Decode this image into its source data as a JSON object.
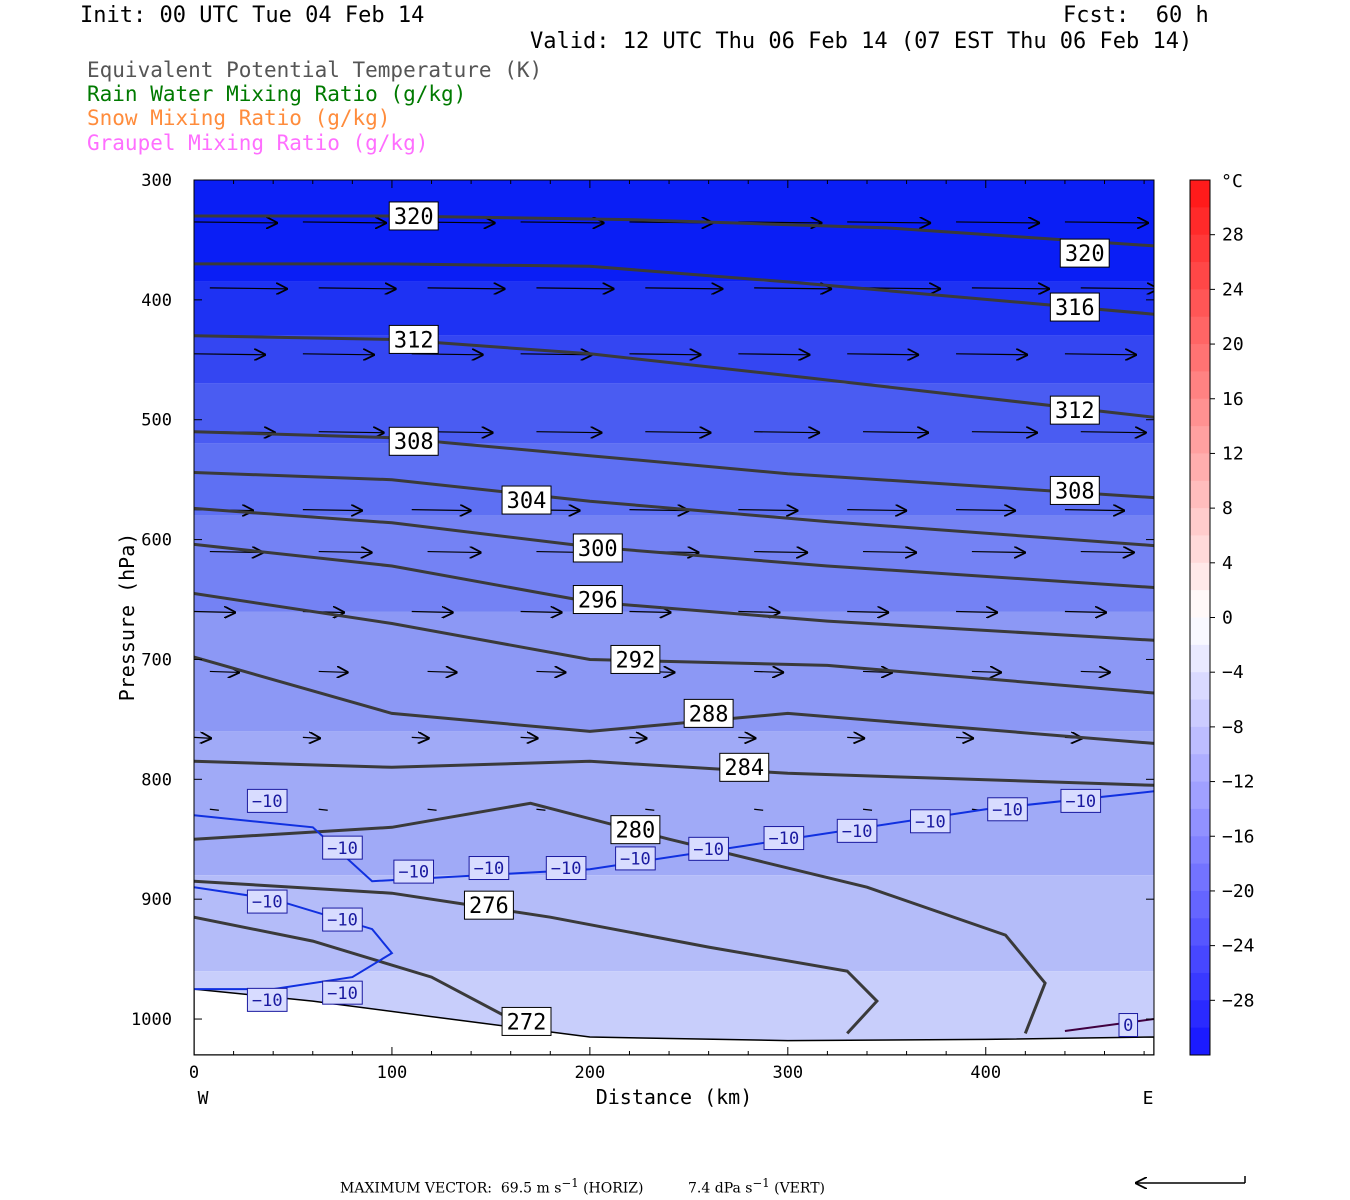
{
  "header": {
    "init": "Init: 00 UTC Tue 04 Feb 14",
    "fcst": "Fcst:  60 h",
    "valid": "Valid: 12 UTC Thu 06 Feb 14 (07 EST Thu 06 Feb 14)"
  },
  "fields": [
    {
      "label": "Equivalent Potential Temperature (K)",
      "color": "#555555"
    },
    {
      "label": "Rain Water Mixing Ratio (g/kg)",
      "color": "#007a00"
    },
    {
      "label": "Snow Mixing Ratio (g/kg)",
      "color": "#ff8c3c"
    },
    {
      "label": "Graupel Mixing Ratio (g/kg)",
      "color": "#ff6eff"
    }
  ],
  "chart_data": {
    "type": "contour",
    "xlabel": "Distance (km)",
    "ylabel": "Pressure (hPa)",
    "xlim": [
      0,
      485
    ],
    "ylim": [
      1030,
      300
    ],
    "x_ticks": [
      0,
      100,
      200,
      300,
      400
    ],
    "y_ticks": [
      300,
      400,
      500,
      600,
      700,
      800,
      900,
      1000
    ],
    "x_end_labels": {
      "left": "W",
      "right": "E"
    },
    "colorbar": {
      "unit": "°C",
      "tick_labels": [
        "28",
        "24",
        "20",
        "16",
        "12",
        "8",
        "4",
        "0",
        "−4",
        "−8",
        "−12",
        "−16",
        "−20",
        "−24",
        "−28"
      ],
      "tick_values": [
        28,
        24,
        20,
        16,
        12,
        8,
        4,
        0,
        -4,
        -8,
        -12,
        -16,
        -20,
        -24,
        -28
      ],
      "range": [
        -32,
        32
      ]
    },
    "theta_e_contours": [
      {
        "label": "320",
        "points": [
          [
            0,
            330
          ],
          [
            100,
            330
          ],
          [
            220,
            333
          ],
          [
            350,
            340
          ],
          [
            485,
            355
          ]
        ],
        "label_pos": [
          [
            111,
            330
          ],
          [
            450,
            361
          ]
        ]
      },
      {
        "label": "316",
        "points": [
          [
            0,
            370
          ],
          [
            100,
            370
          ],
          [
            200,
            372
          ],
          [
            300,
            385
          ],
          [
            485,
            412
          ]
        ],
        "label_pos": [
          [
            445,
            406
          ]
        ]
      },
      {
        "label": "312",
        "points": [
          [
            0,
            430
          ],
          [
            100,
            433
          ],
          [
            200,
            445
          ],
          [
            310,
            465
          ],
          [
            485,
            498
          ]
        ],
        "label_pos": [
          [
            111,
            433
          ],
          [
            445,
            492
          ]
        ]
      },
      {
        "label": "308",
        "points": [
          [
            0,
            510
          ],
          [
            100,
            515
          ],
          [
            200,
            530
          ],
          [
            300,
            545
          ],
          [
            485,
            565
          ]
        ],
        "label_pos": [
          [
            111,
            518
          ],
          [
            445,
            559
          ]
        ]
      },
      {
        "label": "304",
        "points": [
          [
            0,
            544
          ],
          [
            100,
            550
          ],
          [
            200,
            568
          ],
          [
            320,
            585
          ],
          [
            485,
            605
          ]
        ],
        "label_pos": [
          [
            168,
            567
          ]
        ]
      },
      {
        "label": "300",
        "points": [
          [
            0,
            574
          ],
          [
            100,
            586
          ],
          [
            200,
            606
          ],
          [
            320,
            622
          ],
          [
            485,
            640
          ]
        ],
        "label_pos": [
          [
            204,
            607
          ]
        ]
      },
      {
        "label": "296",
        "points": [
          [
            0,
            604
          ],
          [
            100,
            622
          ],
          [
            200,
            652
          ],
          [
            320,
            668
          ],
          [
            485,
            684
          ]
        ],
        "label_pos": [
          [
            204,
            650
          ]
        ]
      },
      {
        "label": "292",
        "points": [
          [
            0,
            645
          ],
          [
            100,
            670
          ],
          [
            200,
            700
          ],
          [
            320,
            705
          ],
          [
            485,
            728
          ]
        ],
        "label_pos": [
          [
            223,
            700
          ]
        ]
      },
      {
        "label": "288",
        "points": [
          [
            0,
            698
          ],
          [
            100,
            745
          ],
          [
            200,
            760
          ],
          [
            300,
            745
          ],
          [
            485,
            770
          ]
        ],
        "label_pos": [
          [
            260,
            745
          ]
        ]
      },
      {
        "label": "284",
        "points": [
          [
            0,
            785
          ],
          [
            100,
            790
          ],
          [
            200,
            785
          ],
          [
            300,
            795
          ],
          [
            485,
            805
          ]
        ],
        "label_pos": [
          [
            278,
            790
          ]
        ]
      },
      {
        "label": "280",
        "points": [
          [
            0,
            850
          ],
          [
            100,
            840
          ],
          [
            170,
            820
          ],
          [
            240,
            850
          ],
          [
            340,
            890
          ],
          [
            410,
            930
          ],
          [
            430,
            970
          ],
          [
            420,
            1012
          ]
        ],
        "label_pos": [
          [
            223,
            842
          ]
        ]
      },
      {
        "label": "276",
        "points": [
          [
            0,
            885
          ],
          [
            100,
            895
          ],
          [
            180,
            915
          ],
          [
            260,
            940
          ],
          [
            330,
            960
          ],
          [
            345,
            985
          ],
          [
            330,
            1012
          ]
        ],
        "label_pos": [
          [
            149,
            905
          ]
        ]
      },
      {
        "label": "272",
        "points": [
          [
            0,
            915
          ],
          [
            60,
            935
          ],
          [
            120,
            965
          ],
          [
            160,
            1000
          ],
          [
            165,
            1012
          ]
        ],
        "label_pos": [
          [
            168,
            1002
          ]
        ]
      }
    ],
    "temperature_contours": [
      {
        "label": "−10",
        "points": [
          [
            0,
            830
          ],
          [
            60,
            840
          ],
          [
            90,
            885
          ],
          [
            200,
            875
          ],
          [
            300,
            850
          ],
          [
            400,
            825
          ],
          [
            485,
            810
          ]
        ],
        "label_pos": [
          [
            37,
            818
          ],
          [
            75,
            857
          ],
          [
            111,
            877
          ],
          [
            149,
            874
          ],
          [
            188,
            874
          ],
          [
            223,
            866
          ],
          [
            260,
            858
          ],
          [
            298,
            849
          ],
          [
            335,
            843
          ],
          [
            372,
            835
          ],
          [
            411,
            825
          ],
          [
            448,
            818
          ]
        ]
      },
      {
        "label": "−10",
        "points": [
          [
            0,
            890
          ],
          [
            40,
            900
          ],
          [
            90,
            925
          ],
          [
            100,
            945
          ],
          [
            80,
            965
          ],
          [
            40,
            975
          ],
          [
            0,
            975
          ]
        ],
        "label_pos": [
          [
            37,
            902
          ],
          [
            75,
            917
          ],
          [
            37,
            984
          ],
          [
            75,
            978
          ]
        ]
      },
      {
        "label": "0",
        "points": [
          [
            440,
            1010
          ],
          [
            485,
            1000
          ]
        ],
        "label_pos": [
          [
            472,
            1005
          ]
        ]
      }
    ],
    "footer": {
      "prefix": "MAXIMUM VECTOR:",
      "horiz": "69.5 m s",
      "horiz_unit": "(HORIZ)",
      "vert": "7.4 dPa s",
      "vert_unit": "(VERT)",
      "exponent": "−1"
    }
  }
}
